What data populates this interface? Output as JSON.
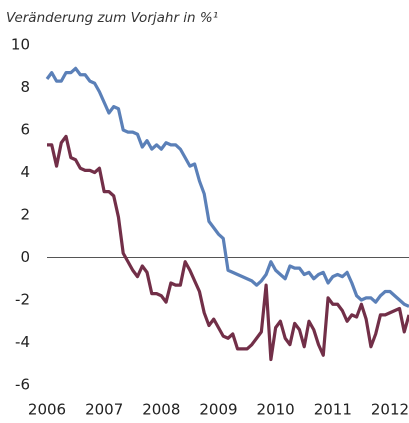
{
  "chart_data": {
    "type": "line",
    "title": "Veränderung zum Vorjahr in %¹",
    "x": [
      2006,
      2006.083,
      2006.167,
      2006.25,
      2006.333,
      2006.417,
      2006.5,
      2006.583,
      2006.667,
      2006.75,
      2006.833,
      2006.917,
      2007,
      2007.083,
      2007.167,
      2007.25,
      2007.333,
      2007.417,
      2007.5,
      2007.583,
      2007.667,
      2007.75,
      2007.833,
      2007.917,
      2008,
      2008.083,
      2008.167,
      2008.25,
      2008.333,
      2008.417,
      2008.5,
      2008.583,
      2008.667,
      2008.75,
      2008.833,
      2008.917,
      2009,
      2009.083,
      2009.167,
      2009.25,
      2009.333,
      2009.417,
      2009.5,
      2009.583,
      2009.667,
      2009.75,
      2009.833,
      2009.917,
      2010,
      2010.083,
      2010.167,
      2010.25,
      2010.333,
      2010.417,
      2010.5,
      2010.583,
      2010.667,
      2010.75,
      2010.833,
      2010.917,
      2011,
      2011.083,
      2011.167,
      2011.25,
      2011.333,
      2011.417,
      2011.5,
      2011.583,
      2011.667,
      2011.75,
      2011.833,
      2011.917,
      2012,
      2012.083,
      2012.167,
      2012.25,
      2012.333
    ],
    "series": [
      {
        "color": "#5b80b8",
        "values": [
          8.4,
          8.7,
          8.3,
          8.3,
          8.7,
          8.7,
          8.9,
          8.6,
          8.6,
          8.3,
          8.2,
          7.8,
          7.3,
          6.8,
          7.1,
          7.0,
          6.0,
          5.9,
          5.9,
          5.8,
          5.2,
          5.5,
          5.1,
          5.3,
          5.1,
          5.4,
          5.3,
          5.3,
          5.1,
          4.7,
          4.3,
          4.4,
          3.6,
          3.0,
          1.7,
          1.4,
          1.1,
          0.9,
          -0.6,
          -0.7,
          -0.8,
          -0.9,
          -1.0,
          -1.1,
          -1.3,
          -1.1,
          -0.8,
          -0.2,
          -0.6,
          -0.8,
          -1.0,
          -0.4,
          -0.5,
          -0.5,
          -0.8,
          -0.7,
          -1.0,
          -0.8,
          -0.7,
          -1.2,
          -0.9,
          -0.8,
          -0.9,
          -0.7,
          -1.2,
          -1.8,
          -2.0,
          -1.9,
          -1.9,
          -2.1,
          -1.8,
          -1.6,
          -1.6,
          -1.8,
          -2.0,
          -2.2,
          -2.3
        ]
      },
      {
        "color": "#722f48",
        "values": [
          5.3,
          5.3,
          4.3,
          5.4,
          5.7,
          4.7,
          4.6,
          4.2,
          4.1,
          4.1,
          4.0,
          4.2,
          3.1,
          3.1,
          2.9,
          1.9,
          0.2,
          -0.2,
          -0.6,
          -0.9,
          -0.4,
          -0.7,
          -1.7,
          -1.7,
          -1.8,
          -2.1,
          -1.2,
          -1.3,
          -1.3,
          -0.2,
          -0.6,
          -1.1,
          -1.6,
          -2.6,
          -3.2,
          -2.9,
          -3.3,
          -3.7,
          -3.8,
          -3.6,
          -4.3,
          -4.3,
          -4.3,
          -4.1,
          -3.8,
          -3.5,
          -1.3,
          -4.8,
          -3.3,
          -3.0,
          -3.8,
          -4.1,
          -3.1,
          -3.4,
          -4.2,
          -3.0,
          -3.4,
          -4.1,
          -4.6,
          -1.9,
          -2.2,
          -2.2,
          -2.5,
          -3.0,
          -2.7,
          -2.8,
          -2.2,
          -2.9,
          -4.2,
          -3.6,
          -2.7,
          -2.7,
          -2.6,
          -2.5,
          -2.4,
          -3.5,
          -2.7
        ]
      }
    ],
    "xlim": [
      2006,
      2012.333
    ],
    "xticks": [
      2006,
      2007,
      2008,
      2009,
      2010,
      2011,
      2012
    ],
    "ylim": [
      -6,
      10
    ],
    "yticks": [
      -6,
      -4,
      -2,
      0,
      2,
      4,
      6,
      8,
      10
    ]
  }
}
